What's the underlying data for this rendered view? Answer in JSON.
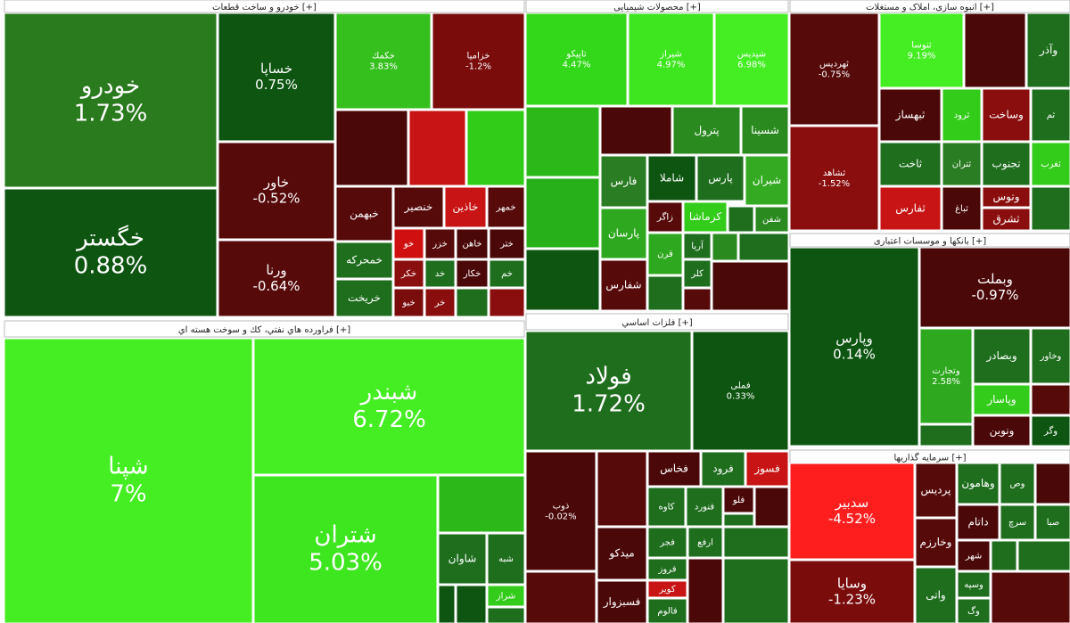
{
  "sectors": [
    {
      "title": "خودرو و ساخت قطعات [+]",
      "tiles": [
        {
          "label": "خودرو",
          "change": "1.73%"
        },
        {
          "label": "خگستر",
          "change": "0.88%"
        },
        {
          "label": "خساپا",
          "change": "0.75%"
        },
        {
          "label": "خاور",
          "change": "-0.52%"
        },
        {
          "label": "ورنا",
          "change": "-0.64%"
        },
        {
          "label": "خكمك",
          "change": "3.83%"
        },
        {
          "label": "خزامیا",
          "change": "-1.2%"
        },
        {
          "label": "خبهمن"
        },
        {
          "label": "خنصیر"
        },
        {
          "label": "خاذین"
        },
        {
          "label": "خمهر"
        },
        {
          "label": "خمحرکه"
        },
        {
          "label": "خریخت"
        },
        {
          "label": "خو"
        },
        {
          "label": "خزر"
        },
        {
          "label": "خاهن"
        },
        {
          "label": "ختر"
        },
        {
          "label": "خکر"
        },
        {
          "label": "خد"
        },
        {
          "label": "خکار"
        },
        {
          "label": "خم"
        },
        {
          "label": "خبو"
        },
        {
          "label": "خر"
        }
      ]
    },
    {
      "title": "محصولات شیمیایی [+]",
      "tiles": [
        {
          "label": "تاپیکو",
          "change": "4.47%"
        },
        {
          "label": "شیراز",
          "change": "4.97%"
        },
        {
          "label": "شپدیس",
          "change": "6.98%"
        },
        {
          "label": "پترول"
        },
        {
          "label": "شسینا"
        },
        {
          "label": "فارس"
        },
        {
          "label": "شاملا"
        },
        {
          "label": "پارس"
        },
        {
          "label": "شیران"
        },
        {
          "label": "پارسان"
        },
        {
          "label": "زاگر"
        },
        {
          "label": "کرماشا"
        },
        {
          "label": "شفن"
        },
        {
          "label": "شفارس"
        },
        {
          "label": "قرن"
        },
        {
          "label": "آریا"
        },
        {
          "label": "کلر"
        }
      ]
    },
    {
      "title": "انبوه سازی، املاک و مستغلات [+]",
      "tiles": [
        {
          "label": "ثهرديس",
          "change": "-0.75%"
        },
        {
          "label": "ثشاهد",
          "change": "-1.52%"
        },
        {
          "label": "ثنوسا",
          "change": "9.19%"
        },
        {
          "label": "وآذر"
        },
        {
          "label": "ثبهساز"
        },
        {
          "label": "ثرود"
        },
        {
          "label": "وساخت"
        },
        {
          "label": "ثم"
        },
        {
          "label": "ثاخت"
        },
        {
          "label": "ثتران"
        },
        {
          "label": "تجنوب"
        },
        {
          "label": "ثغرب"
        },
        {
          "label": "ثفارس"
        },
        {
          "label": "ثباغ"
        },
        {
          "label": "وتوس"
        },
        {
          "label": "ثشرق"
        }
      ]
    },
    {
      "title": "بانکها و موسسات اعتباری [+]",
      "tiles": [
        {
          "label": "وپارس",
          "change": "0.14%"
        },
        {
          "label": "وبملت",
          "change": "-0.97%"
        },
        {
          "label": "وتجارت",
          "change": "2.58%"
        },
        {
          "label": "وبصادر"
        },
        {
          "label": "وخاور"
        },
        {
          "label": "وپاسار"
        },
        {
          "label": "ونوین"
        },
        {
          "label": "وگر"
        }
      ]
    },
    {
      "title": "فراورده هاي نفتي، كك و سوخت هسته اي [+]",
      "tiles": [
        {
          "label": "شپنا",
          "change": "7%"
        },
        {
          "label": "شبندر",
          "change": "6.72%"
        },
        {
          "label": "شتران",
          "change": "5.03%"
        },
        {
          "label": "شاوان"
        },
        {
          "label": "شبه"
        },
        {
          "label": "شراز"
        }
      ]
    },
    {
      "title": "فلزات اساسي [+]",
      "tiles": [
        {
          "label": "فولاد",
          "change": "1.72%"
        },
        {
          "label": "فملی",
          "change": "0.33%"
        },
        {
          "label": "ذوب",
          "change": "-0.02%"
        },
        {
          "label": "میدکو"
        },
        {
          "label": "فسبزوار"
        },
        {
          "label": "فخاس"
        },
        {
          "label": "فرود"
        },
        {
          "label": "فسوز"
        },
        {
          "label": "کاوه"
        },
        {
          "label": "فنورد"
        },
        {
          "label": "فلو"
        },
        {
          "label": "فجر"
        },
        {
          "label": "ارفع"
        },
        {
          "label": "فروز"
        },
        {
          "label": "کویر"
        },
        {
          "label": "فالوم"
        }
      ]
    },
    {
      "title": "سرمایه گذاریها [+]",
      "tiles": [
        {
          "label": "سدبیر",
          "change": "-4.52%"
        },
        {
          "label": "وسایا",
          "change": "-1.23%"
        },
        {
          "label": "پردیس"
        },
        {
          "label": "وخارزم"
        },
        {
          "label": "واتی"
        },
        {
          "label": "وهامون"
        },
        {
          "label": "وص"
        },
        {
          "label": "داتام"
        },
        {
          "label": "سرچ"
        },
        {
          "label": "صبا"
        },
        {
          "label": "شهر"
        },
        {
          "label": "وسپه"
        },
        {
          "label": "وگ"
        }
      ]
    }
  ]
}
